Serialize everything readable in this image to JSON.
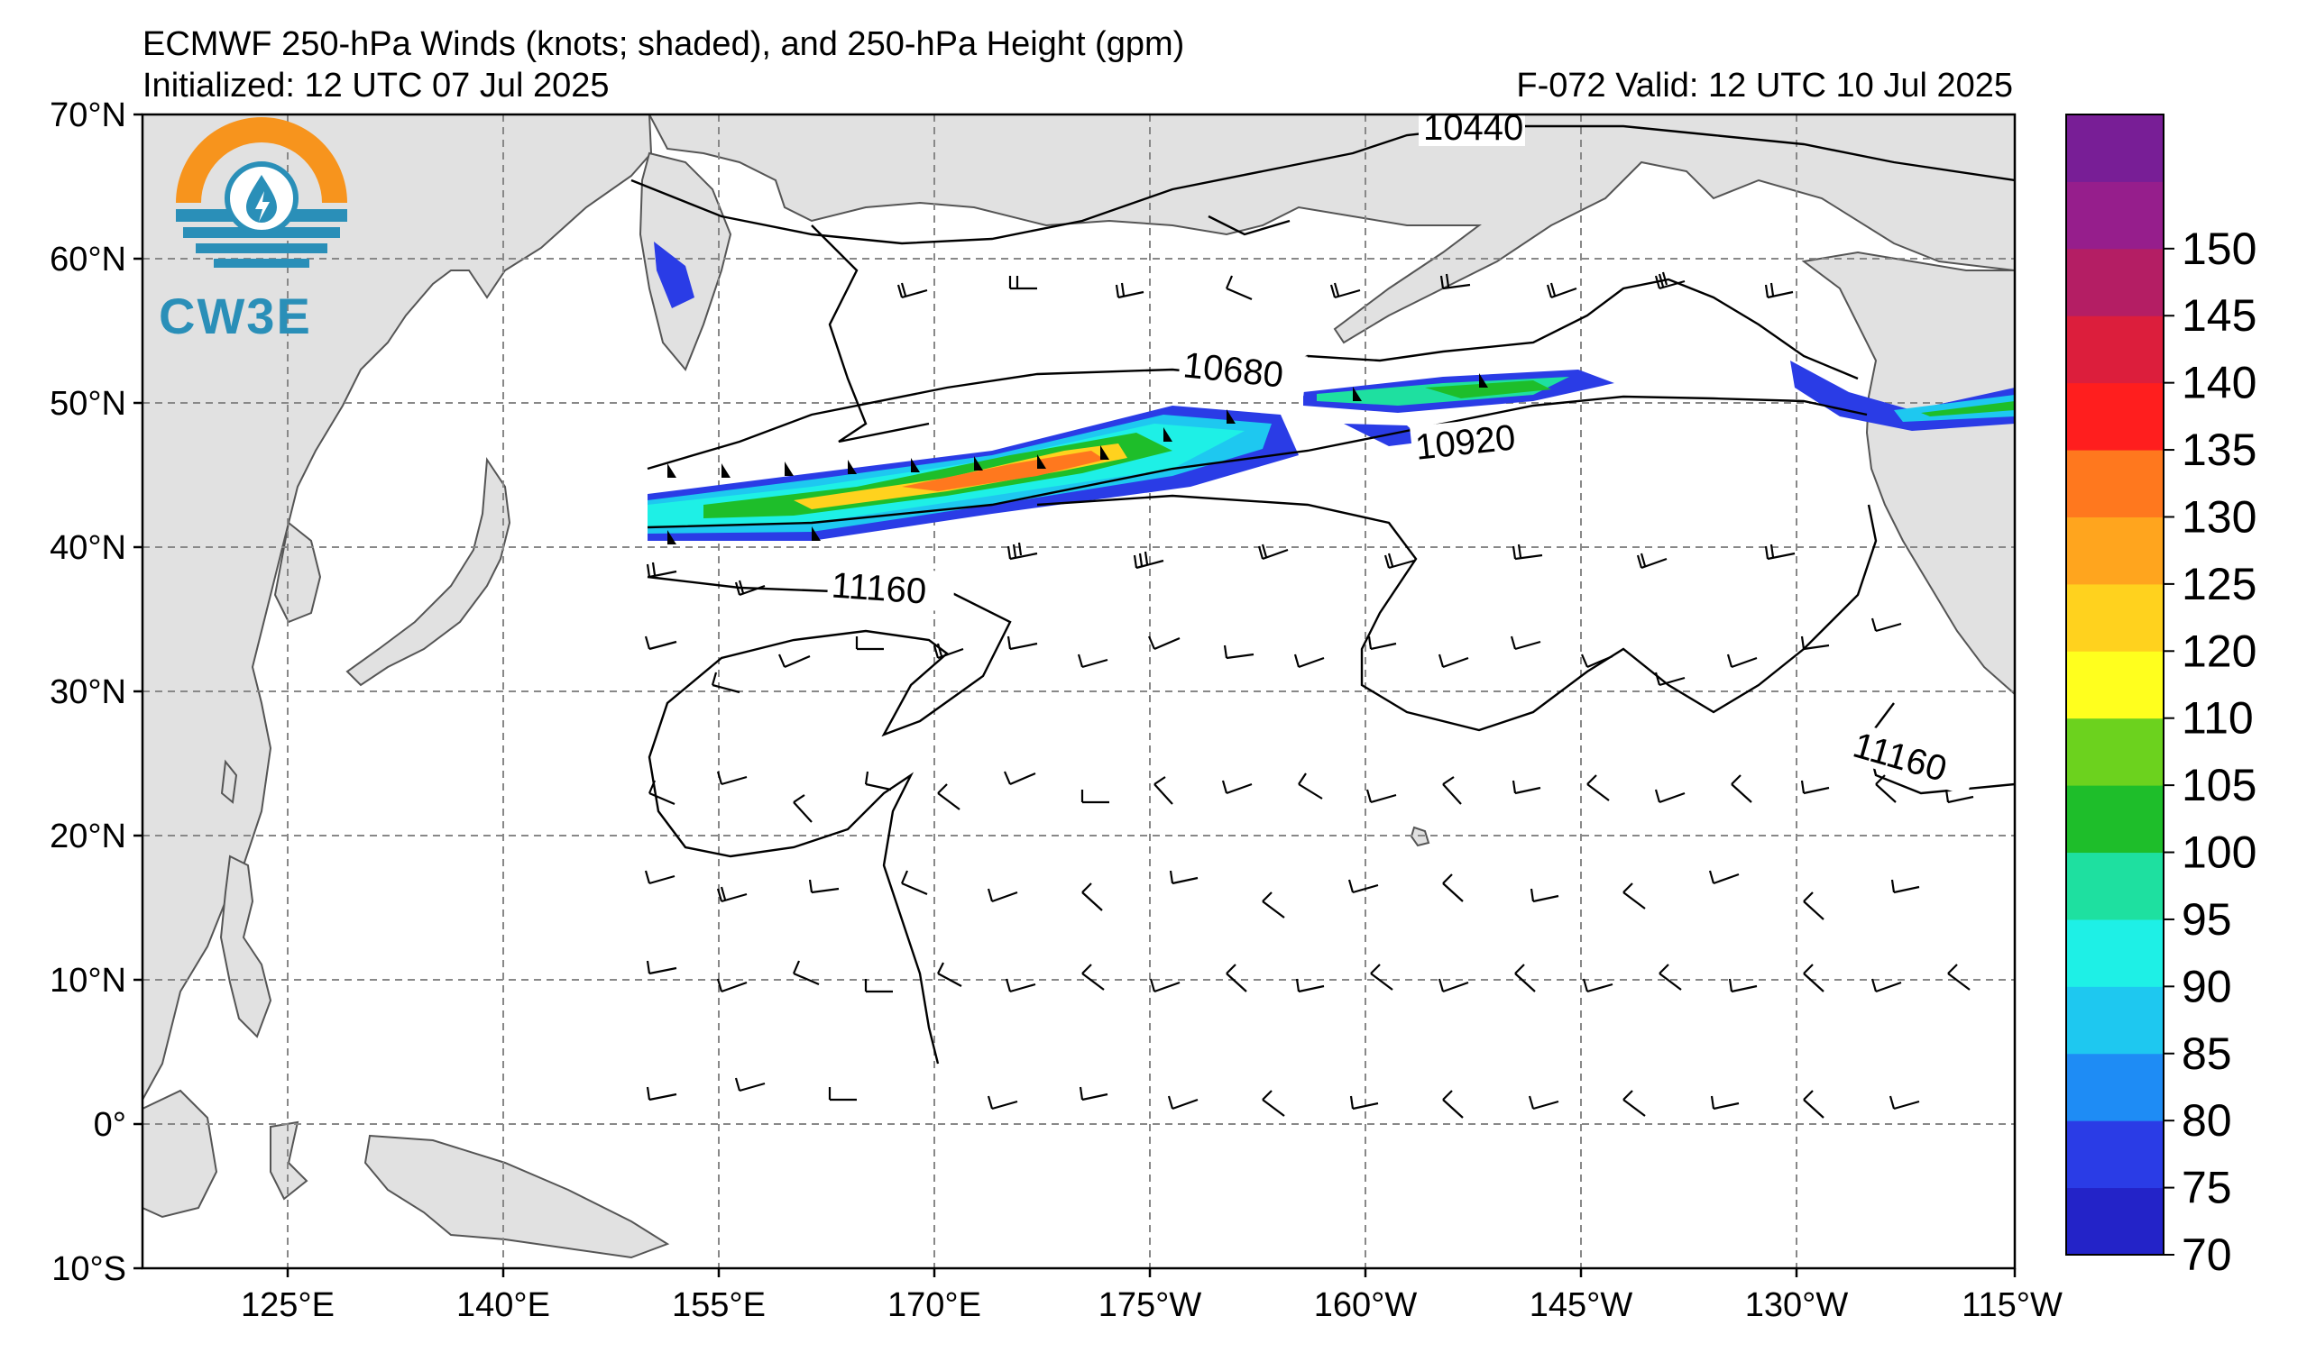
{
  "header": {
    "title": "ECMWF 250-hPa Winds (knots; shaded), and 250-hPa Height (gpm)",
    "initialized": "Initialized: 12 UTC 07 Jul 2025",
    "valid": "F-072  Valid: 12 UTC 10 Jul 2025"
  },
  "logo": {
    "text": "CW3E",
    "icon": "cw3e-sun-droplet-icon"
  },
  "axes": {
    "lat_labels": [
      "70°N",
      "60°N",
      "50°N",
      "40°N",
      "30°N",
      "20°N",
      "10°N",
      "0°",
      "10°S"
    ],
    "lon_labels": [
      "125°E",
      "140°E",
      "155°E",
      "170°E",
      "175°W",
      "160°W",
      "145°W",
      "130°W",
      "115°W"
    ]
  },
  "height_contour_labels": [
    "10440",
    "10680",
    "10920",
    "11160",
    "11160"
  ],
  "colorbar": {
    "levels": [
      "70",
      "75",
      "80",
      "85",
      "90",
      "95",
      "100",
      "105",
      "110",
      "120",
      "125",
      "130",
      "135",
      "140",
      "145",
      "150"
    ],
    "colors": [
      "#2323c8",
      "#2a3ce6",
      "#1e8cf5",
      "#1ec8f0",
      "#1ef0e6",
      "#1ee0a0",
      "#1ebe2a",
      "#6cd21e",
      "#ffff1e",
      "#ffd21e",
      "#ffa51e",
      "#ff781e",
      "#ff1e1e",
      "#dc1e3c",
      "#b41e64",
      "#961e8c",
      "#781e96"
    ]
  },
  "colors": {
    "land": "#e1e1e1",
    "coast": "#555555",
    "grid": "#888888"
  }
}
